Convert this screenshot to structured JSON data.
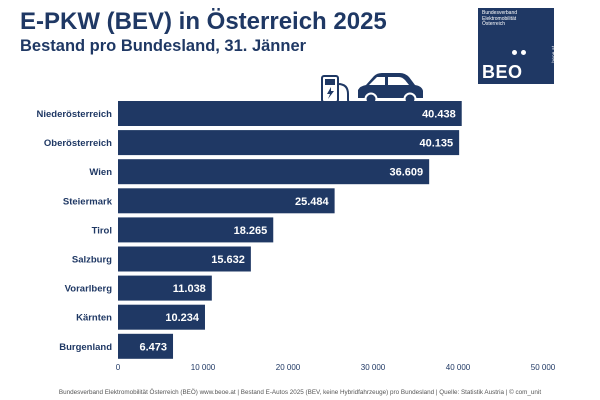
{
  "header": {
    "title": "E-PKW (BEV) in Österreich 2025",
    "subtitle": "Bestand pro Bundesland, 31. Jänner"
  },
  "logo": {
    "org_text": "Bundesverband Elektromobilität Österreich",
    "mark": "BEO",
    "url": "beoe.at",
    "color": "#1f3864"
  },
  "chart_data": {
    "type": "bar",
    "orientation": "horizontal",
    "title": "E-PKW (BEV) in Österreich 2025",
    "subtitle": "Bestand pro Bundesland, 31. Jänner",
    "categories": [
      "Niederösterreich",
      "Oberösterreich",
      "Wien",
      "Steiermark",
      "Tirol",
      "Salzburg",
      "Vorarlberg",
      "Kärnten",
      "Burgenland"
    ],
    "values": [
      40438,
      40135,
      36609,
      25484,
      18265,
      15632,
      11038,
      10234,
      6473
    ],
    "value_labels": [
      "40.438",
      "40.135",
      "36.609",
      "25.484",
      "18.265",
      "15.632",
      "11.038",
      "10.234",
      "6.473"
    ],
    "xlim": [
      0,
      50000
    ],
    "xticks": [
      0,
      10000,
      20000,
      30000,
      40000,
      50000
    ],
    "xtick_labels": [
      "0",
      "10 000",
      "20 000",
      "30 000",
      "40 000",
      "50 000"
    ],
    "xlabel": "",
    "ylabel": "",
    "grid": false,
    "bar_color": "#1f3864",
    "decoration_icons": [
      "ev-charger-icon",
      "car-icon"
    ]
  },
  "footer": {
    "text": "Bundesverband Elektromobilität Österreich (BEÖ) www.beoe.at | Bestand E-Autos 2025 (BEV, keine Hybridfahrzeuge) pro Bundesland | Quelle: Statistik Austria | © com_unit"
  }
}
